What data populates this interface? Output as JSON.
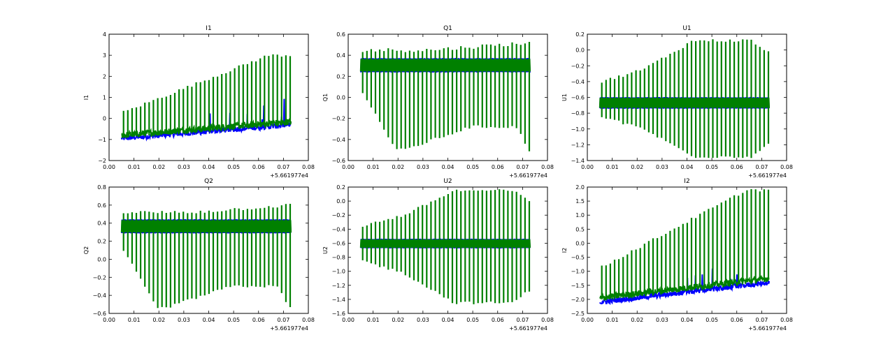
{
  "colors": {
    "series1": "#0000ff",
    "series2": "#008000",
    "frame": "#000000"
  },
  "chart_data": [
    {
      "type": "line",
      "title": "I1",
      "ylabel": "I1",
      "xlim": [
        0.0,
        0.08
      ],
      "ylim": [
        -2,
        4
      ],
      "xticks": [
        "0.00",
        "0.01",
        "0.02",
        "0.03",
        "0.04",
        "0.05",
        "0.06",
        "0.07",
        "0.08"
      ],
      "yticks": [
        "−2",
        "−1",
        "0",
        "1",
        "2",
        "3",
        "4"
      ],
      "offset": "+5.661977e4",
      "x_range": [
        0.005,
        0.073
      ],
      "spike_count": 40,
      "series": [
        {
          "name": "blue",
          "base_start": -0.95,
          "base_end": -0.3,
          "noise": 0.1
        },
        {
          "name": "green",
          "base_start": -0.8,
          "base_end": -0.15,
          "spike_top_start": 0.3,
          "spike_top_end": 3.0,
          "spike_bottom_start": -0.9,
          "spike_bottom_end": -0.3
        }
      ]
    },
    {
      "type": "line",
      "title": "Q1",
      "ylabel": "Q1",
      "xlim": [
        0.0,
        0.08
      ],
      "ylim": [
        -0.6,
        0.6
      ],
      "xticks": [
        "0.00",
        "0.01",
        "0.02",
        "0.03",
        "0.04",
        "0.05",
        "0.06",
        "0.07",
        "0.08"
      ],
      "yticks": [
        "−0.6",
        "−0.4",
        "−0.2",
        "0.0",
        "0.2",
        "0.4",
        "0.6"
      ],
      "offset": "+5.661977e4",
      "x_range": [
        0.005,
        0.073
      ],
      "spike_count": 40,
      "series": [
        {
          "name": "blue",
          "band_low": 0.24,
          "band_high": 0.37
        },
        {
          "name": "green",
          "spike_top": 0.45,
          "spike_top_late": 0.52,
          "spike_bottom_early": 0.05,
          "spike_bottom_mid": -0.5,
          "spike_bottom_late": -0.28
        }
      ]
    },
    {
      "type": "line",
      "title": "U1",
      "ylabel": "U1",
      "xlim": [
        0.0,
        0.08
      ],
      "ylim": [
        -1.4,
        0.2
      ],
      "xticks": [
        "0.00",
        "0.01",
        "0.02",
        "0.03",
        "0.04",
        "0.05",
        "0.06",
        "0.07",
        "0.08"
      ],
      "yticks": [
        "−1.4",
        "−1.2",
        "−1.0",
        "−0.8",
        "−0.6",
        "−0.4",
        "−0.2",
        "0.0",
        "0.2"
      ],
      "offset": "+5.661977e4",
      "x_range": [
        0.005,
        0.073
      ],
      "spike_count": 40,
      "series": [
        {
          "name": "blue",
          "band_low": -0.74,
          "band_high": -0.6
        },
        {
          "name": "green",
          "spike_top_early": -0.4,
          "spike_top_peak": 0.12,
          "spike_bottom_early": -0.85,
          "spike_bottom_peak": -1.35
        }
      ]
    },
    {
      "type": "line",
      "title": "Q2",
      "ylabel": "Q2",
      "xlim": [
        0.0,
        0.08
      ],
      "ylim": [
        -0.6,
        0.8
      ],
      "xticks": [
        "0.00",
        "0.01",
        "0.02",
        "0.03",
        "0.04",
        "0.05",
        "0.06",
        "0.07",
        "0.08"
      ],
      "yticks": [
        "−0.6",
        "−0.4",
        "−0.2",
        "0.0",
        "0.2",
        "0.4",
        "0.6",
        "0.8"
      ],
      "offset": "+5.661977e4",
      "x_range": [
        0.005,
        0.073
      ],
      "spike_count": 40,
      "series": [
        {
          "name": "blue",
          "band_low": 0.29,
          "band_high": 0.44
        },
        {
          "name": "green",
          "spike_top": 0.52,
          "spike_top_late": 0.6,
          "spike_bottom_early": 0.1,
          "spike_bottom_mid": -0.54,
          "spike_bottom_late": -0.3
        }
      ]
    },
    {
      "type": "line",
      "title": "U2",
      "ylabel": "U2",
      "xlim": [
        0.0,
        0.08
      ],
      "ylim": [
        -1.6,
        0.2
      ],
      "xticks": [
        "0.00",
        "0.01",
        "0.02",
        "0.03",
        "0.04",
        "0.05",
        "0.06",
        "0.07",
        "0.08"
      ],
      "yticks": [
        "−1.6",
        "−1.4",
        "−1.2",
        "−1.0",
        "−0.8",
        "−0.6",
        "−0.4",
        "−0.2",
        "0.0",
        "0.2"
      ],
      "offset": "+5.661977e4",
      "x_range": [
        0.005,
        0.073
      ],
      "spike_count": 40,
      "series": [
        {
          "name": "blue",
          "band_low": -0.67,
          "band_high": -0.54
        },
        {
          "name": "green",
          "spike_top_early": -0.35,
          "spike_top_peak": 0.15,
          "spike_bottom_early": -0.85,
          "spike_bottom_peak": -1.45
        }
      ]
    },
    {
      "type": "line",
      "title": "I2",
      "ylabel": "I2",
      "xlim": [
        0.0,
        0.08
      ],
      "ylim": [
        -2.5,
        2.0
      ],
      "xticks": [
        "0.00",
        "0.01",
        "0.02",
        "0.03",
        "0.04",
        "0.05",
        "0.06",
        "0.07",
        "0.08"
      ],
      "yticks": [
        "−2.5",
        "−2.0",
        "−1.5",
        "−1.0",
        "−0.5",
        "0.0",
        "0.5",
        "1.0",
        "1.5",
        "2.0"
      ],
      "offset": "+5.661977e4",
      "x_range": [
        0.005,
        0.073
      ],
      "spike_count": 40,
      "series": [
        {
          "name": "blue",
          "base_start": -2.1,
          "base_end": -1.4,
          "noise": 0.1
        },
        {
          "name": "green",
          "base_start": -1.95,
          "base_end": -1.25,
          "spike_top_start": -0.85,
          "spike_top_end": 1.9,
          "spike_bottom_start": -2.0,
          "spike_bottom_end": -1.3
        }
      ]
    }
  ]
}
